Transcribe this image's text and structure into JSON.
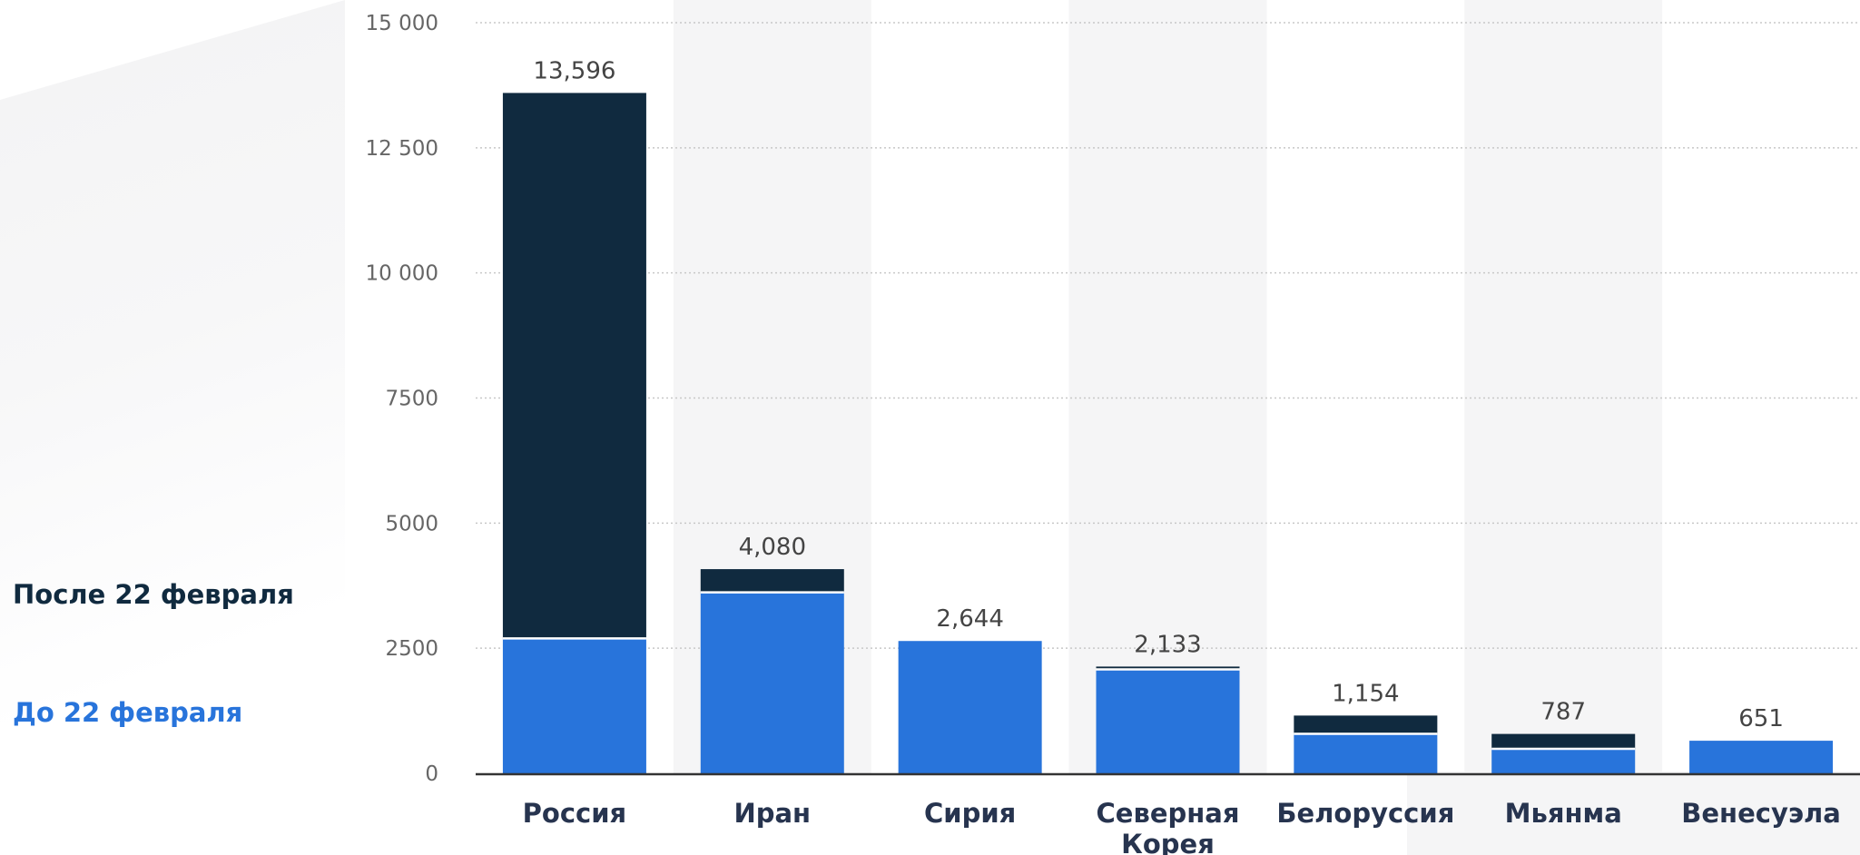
{
  "colors": {
    "after": "#102a3f",
    "before": "#2874db",
    "band": "#f5f5f6",
    "grid": "#c8c8c8",
    "axis": "#333333"
  },
  "legend": {
    "after": "После 22 февраля",
    "before": "До 22 февраля"
  },
  "chart_data": {
    "type": "bar",
    "stacked": true,
    "categories": [
      "Россия",
      "Иран",
      "Сирия",
      "Северная Корея",
      "Белоруссия",
      "Мьянма",
      "Венесуэла"
    ],
    "series": [
      {
        "name": "До 22 февраля",
        "values": [
          2695,
          3616,
          2644,
          2077,
          788,
          489,
          651
        ]
      },
      {
        "name": "После 22 февраля",
        "values": [
          10901,
          464,
          0,
          56,
          366,
          298,
          0
        ]
      }
    ],
    "totals": [
      13596,
      4080,
      2644,
      2133,
      1154,
      787,
      651
    ],
    "total_labels": [
      "13,596",
      "4,080",
      "2,644",
      "2,133",
      "1,154",
      "787",
      "651"
    ],
    "yticks": [
      0,
      2500,
      5000,
      7500,
      10000,
      12500,
      15000
    ],
    "ytick_labels": [
      "0",
      "2500",
      "5000",
      "7500",
      "10 000",
      "12 500",
      "15 000"
    ],
    "ylim": [
      0,
      15000
    ],
    "grid": true,
    "legend_position": "left"
  }
}
